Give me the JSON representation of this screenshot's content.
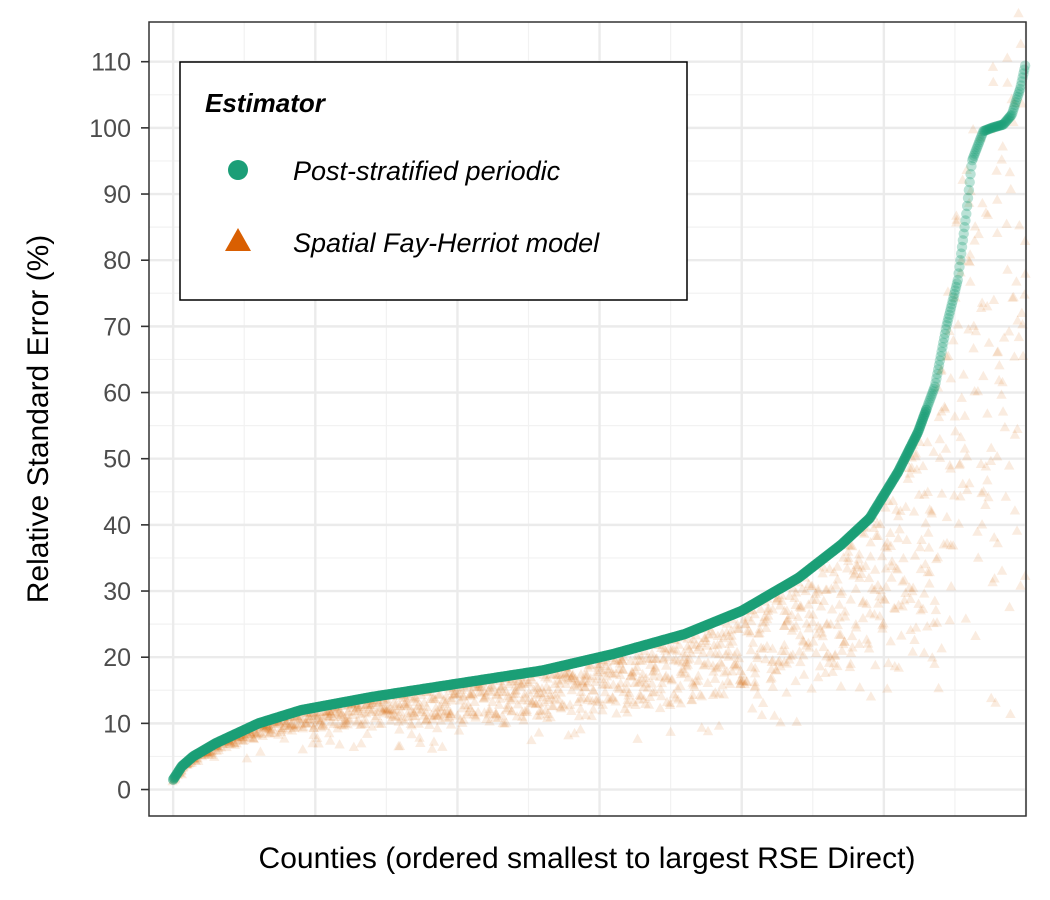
{
  "chart_data": {
    "type": "scatter",
    "title": "",
    "xlabel": "Counties (ordered smallest to largest RSE Direct)",
    "ylabel": "Relative Standard Error (%)",
    "ylim": [
      -4,
      116
    ],
    "xlim": [
      -85,
      3000
    ],
    "n_points": 3000,
    "yticks": [
      0,
      10,
      20,
      30,
      40,
      50,
      60,
      70,
      80,
      90,
      100,
      110
    ],
    "ytick_labels": [
      "0",
      "10",
      "20",
      "30",
      "40",
      "50",
      "60",
      "70",
      "80",
      "90",
      "100",
      "110"
    ],
    "grid": true,
    "legend_position": "top-left",
    "legend_title": "Estimator",
    "series": [
      {
        "name": "Post-stratified periodic",
        "marker": "circle",
        "color": "#1b9e77",
        "note": "points lie on the ordered curve",
        "curve": {
          "rank": [
            0,
            30,
            70,
            150,
            300,
            450,
            700,
            1000,
            1300,
            1550,
            1800,
            2000,
            2200,
            2350,
            2450,
            2550,
            2620,
            2680,
            2720,
            2760,
            2790,
            2810,
            2850,
            2880,
            2920,
            2950,
            2980,
            3000
          ],
          "rse": [
            1.5,
            3.5,
            5,
            7,
            10,
            12,
            14,
            16,
            18,
            20.5,
            23.5,
            27,
            32,
            37,
            41,
            48,
            54,
            61,
            70,
            77,
            87,
            95,
            99.5,
            100,
            100.5,
            102,
            106,
            110
          ]
        }
      },
      {
        "name": "Spatial Fay-Herriot model",
        "marker": "triangle",
        "color": "#d95f02",
        "note": "values scattered at or below the direct curve, widening with rank",
        "spread_fraction": {
          "rank": [
            0,
            500,
            1000,
            1500,
            2000,
            2400,
            2700,
            3000
          ],
          "lower_fraction": [
            0.85,
            0.75,
            0.6,
            0.55,
            0.55,
            0.45,
            0.3,
            0.15
          ]
        }
      }
    ]
  }
}
